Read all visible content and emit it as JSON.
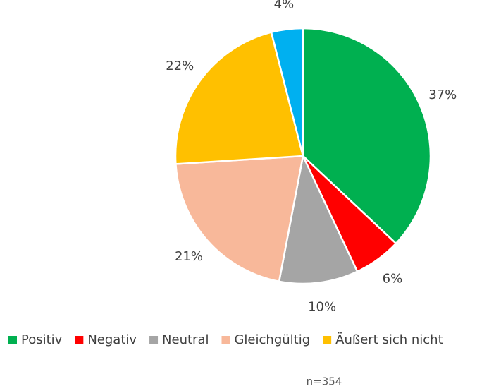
{
  "chart_data": {
    "type": "pie",
    "categories": [
      "Positiv",
      "Negativ",
      "Neutral",
      "Gleichgültig",
      "Äußert sich nicht",
      null
    ],
    "values": [
      37,
      6,
      10,
      21,
      22,
      4
    ],
    "value_labels": [
      "37%",
      "6%",
      "10%",
      "21%",
      "22%",
      "4%"
    ],
    "colors": [
      "#00b050",
      "#ff0000",
      "#a5a5a5",
      "#f8b89a",
      "#ffc000",
      "#00b0f0"
    ],
    "legend": "bottom",
    "annotation": "n=354"
  }
}
